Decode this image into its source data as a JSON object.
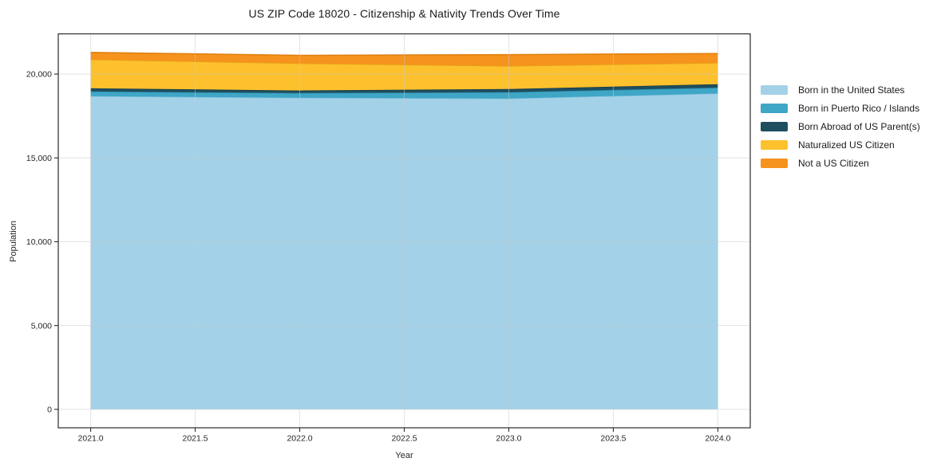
{
  "title": "US ZIP Code 18020 - Citizenship & Nativity Trends Over Time",
  "chart_data": {
    "type": "area",
    "stacked": true,
    "title": "US ZIP Code 18020 - Citizenship & Nativity Trends Over Time",
    "xlabel": "Year",
    "ylabel": "Population",
    "x": [
      2021,
      2022,
      2023,
      2024
    ],
    "series": [
      {
        "name": "Born in the United States",
        "color": "#A3D2E8",
        "edge_color": "#8AC2DC",
        "values": [
          18680,
          18590,
          18540,
          18840
        ]
      },
      {
        "name": "Born in Puerto Rico / Islands",
        "color": "#3FA6C6",
        "edge_color": "#2E8CAA",
        "values": [
          285,
          285,
          380,
          350
        ]
      },
      {
        "name": "Born Abroad of US Parent(s)",
        "color": "#1F4E5F",
        "edge_color": "#143C4B",
        "values": [
          190,
          145,
          190,
          205
        ]
      },
      {
        "name": "Naturalized US Citizen",
        "color": "#FDC12E",
        "edge_color": "#E5A715",
        "values": [
          1710,
          1615,
          1370,
          1270
        ]
      },
      {
        "name": "Not a US Citizen",
        "color": "#F5931E",
        "edge_color": "#E07E0D",
        "values": [
          430,
          480,
          680,
          560
        ]
      }
    ],
    "totals": [
      21295,
      21115,
      21160,
      21225
    ],
    "xticks": [
      2021.0,
      2021.5,
      2022.0,
      2022.5,
      2023.0,
      2023.5,
      2024.0
    ],
    "xtick_labels": [
      "2021.0",
      "2021.5",
      "2022.0",
      "2022.5",
      "2023.0",
      "2023.5",
      "2024.0"
    ],
    "yticks": [
      0,
      5000,
      10000,
      15000,
      20000
    ],
    "ytick_labels": [
      "0",
      "5,000",
      "10,000",
      "15,000",
      "20,000"
    ],
    "xlim": [
      2020.845,
      2024.155
    ],
    "ylim": [
      -1100,
      22400
    ],
    "grid": true,
    "grid_color": "#c8c8c8",
    "axis_color": "#2b2b2b",
    "tick_label_color": "#262626",
    "legend_position": "right"
  }
}
